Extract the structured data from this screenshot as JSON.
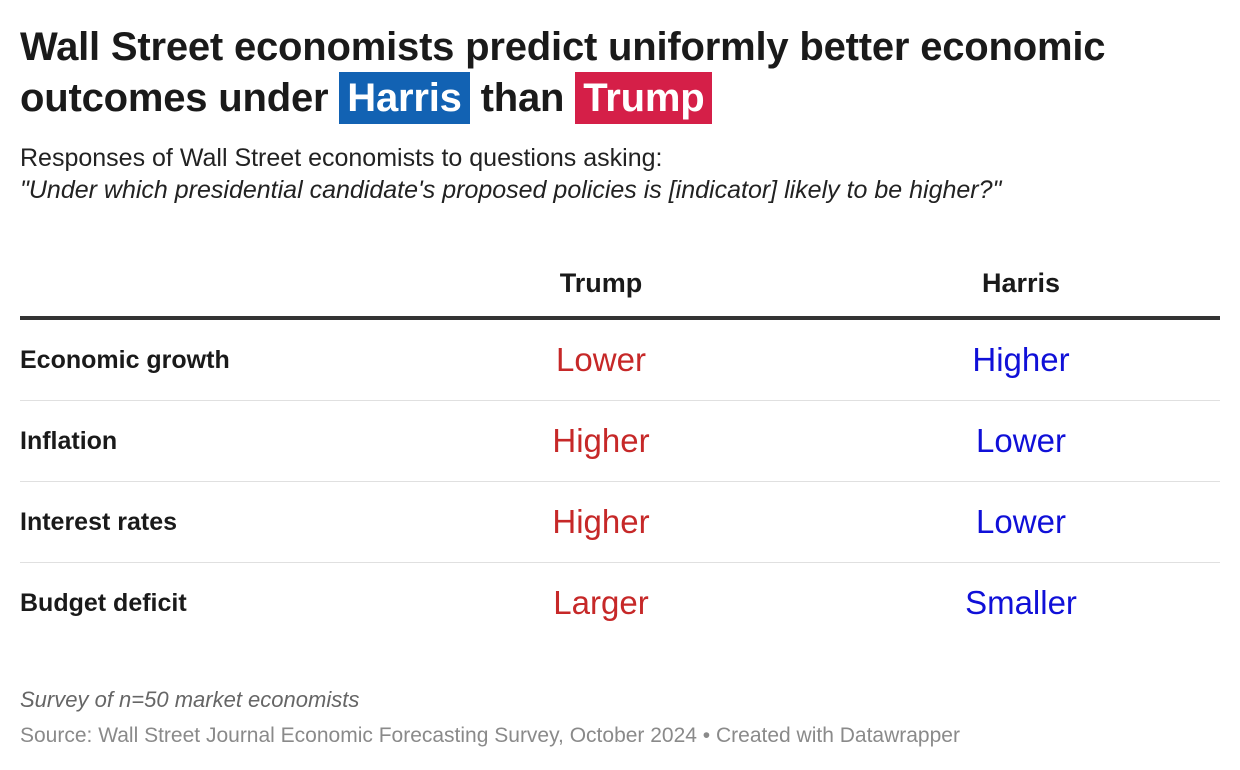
{
  "title": {
    "line1": "Wall Street economists predict uniformly better economic",
    "line2_prefix": "outcomes under",
    "harris": "Harris",
    "than": "than",
    "trump": "Trump"
  },
  "subtitle": {
    "line1": "Responses of Wall Street economists to questions asking:",
    "question": "\"Under which presidential candidate's proposed policies is [indicator] likely to be higher?\""
  },
  "colors": {
    "harris": "#1262b3",
    "trump": "#d51f48",
    "trump_text": "#c62828",
    "harris_text": "#1010d8"
  },
  "chart_data": {
    "type": "table",
    "columns": [
      "Trump",
      "Harris"
    ],
    "rows": [
      {
        "indicator": "Economic growth",
        "trump": "Lower",
        "harris": "Higher"
      },
      {
        "indicator": "Inflation",
        "trump": "Higher",
        "harris": "Lower"
      },
      {
        "indicator": "Interest rates",
        "trump": "Higher",
        "harris": "Lower"
      },
      {
        "indicator": "Budget deficit",
        "trump": "Larger",
        "harris": "Smaller"
      }
    ]
  },
  "footer": {
    "note": "Survey of n=50 market economists",
    "source": "Source: Wall Street Journal Economic Forecasting Survey, October 2024 • Created with Datawrapper"
  }
}
